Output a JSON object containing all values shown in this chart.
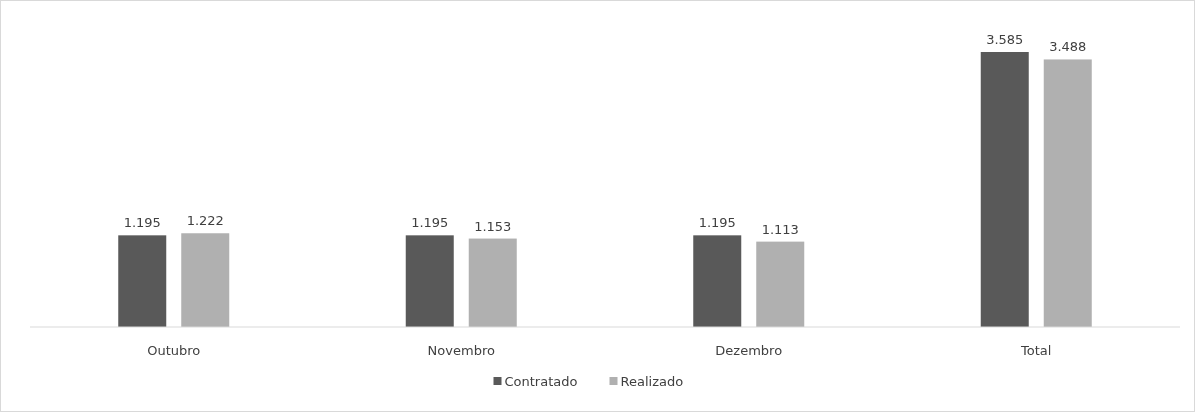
{
  "chart_data": {
    "type": "bar",
    "categories": [
      "Outubro",
      "Novembro",
      "Dezembro",
      "Total"
    ],
    "series": [
      {
        "name": "Contratado",
        "color": "#595959",
        "values": [
          1195,
          1195,
          1195,
          3585
        ],
        "value_labels": [
          "1.195",
          "1.195",
          "1.195",
          "3.585"
        ]
      },
      {
        "name": "Realizado",
        "color": "#b0b0b0",
        "values": [
          1222,
          1153,
          1113,
          3488
        ],
        "value_labels": [
          "1.222",
          "1.153",
          "1.113",
          "3.488"
        ]
      }
    ],
    "legend": "bottom"
  }
}
